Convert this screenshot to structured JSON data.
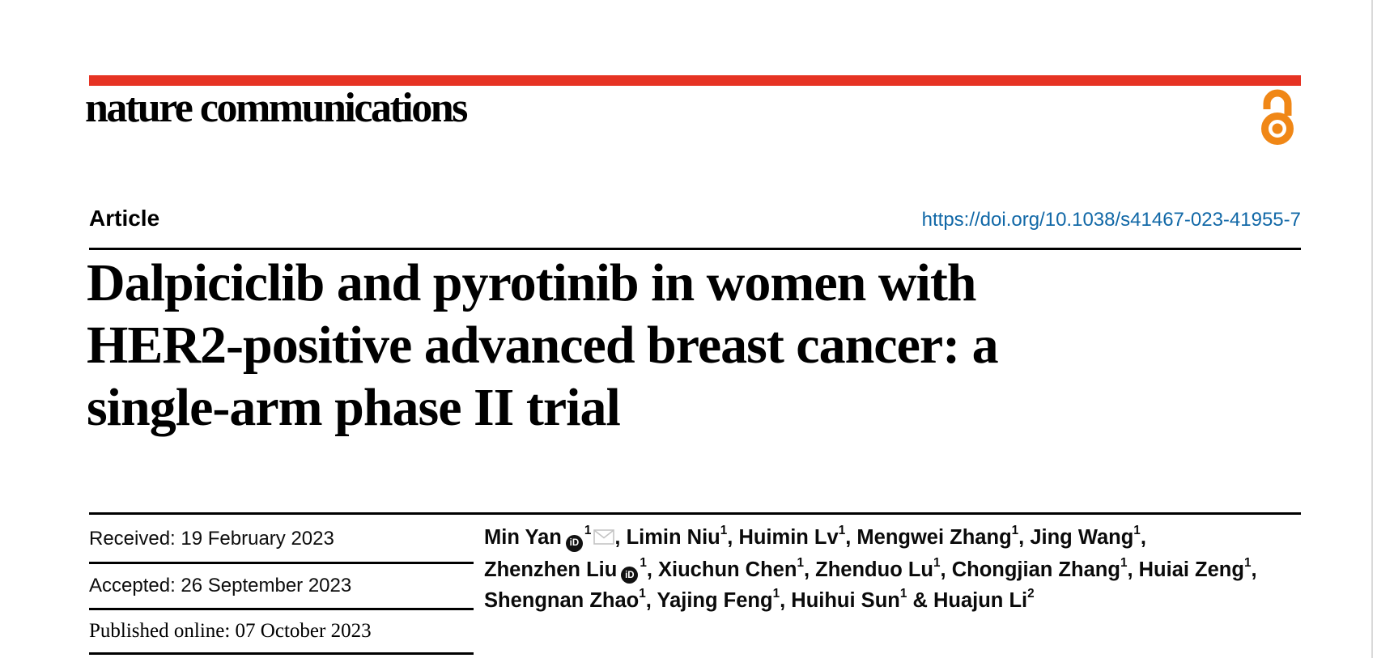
{
  "brand": {
    "logo_text": "nature communications",
    "bar_color": "#E63323",
    "open_access_icon_color": "#F08716"
  },
  "article": {
    "type_label": "Article",
    "doi": "https://doi.org/10.1038/s41467-023-41955-7",
    "doi_color": "#1168A7",
    "title_lines": [
      "Dalpiciclib and pyrotinib in women with",
      "HER2-positive advanced breast cancer: a",
      "single-arm phase II trial"
    ]
  },
  "dates": [
    {
      "text": "Received: 19 February 2023"
    },
    {
      "text": "Accepted: 26 September 2023"
    },
    {
      "text": "Published online: 07 October 2023"
    }
  ],
  "authors": {
    "orcid_icon_text": "iD",
    "lines": [
      [
        {
          "name": "Min Yan",
          "orcid": true,
          "sup": "1",
          "mail": true,
          "sep": ", "
        },
        {
          "name": "Limin Niu",
          "sup": "1",
          "sep": ", "
        },
        {
          "name": "Huimin Lv",
          "sup": "1",
          "sep": ", "
        },
        {
          "name": "Mengwei Zhang",
          "sup": "1",
          "sep": ", "
        },
        {
          "name": "Jing Wang",
          "sup": "1",
          "sep": ","
        }
      ],
      [
        {
          "name": "Zhenzhen Liu",
          "orcid": true,
          "sup": "1",
          "sep": ", "
        },
        {
          "name": "Xiuchun Chen",
          "sup": "1",
          "sep": ", "
        },
        {
          "name": "Zhenduo Lu",
          "sup": "1",
          "sep": ", "
        },
        {
          "name": "Chongjian Zhang",
          "sup": "1",
          "sep": ", "
        },
        {
          "name": "Huiai Zeng",
          "sup": "1",
          "sep": ","
        }
      ],
      [
        {
          "name": "Shengnan Zhao",
          "sup": "1",
          "sep": ", "
        },
        {
          "name": "Yajing Feng",
          "sup": "1",
          "sep": ", "
        },
        {
          "name": "Huihui Sun",
          "sup": "1",
          "sep": " & "
        },
        {
          "name": "Huajun Li",
          "sup": "2",
          "sep": ""
        }
      ]
    ]
  }
}
